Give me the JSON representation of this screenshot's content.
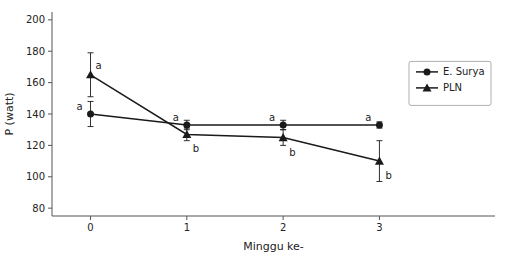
{
  "chart_data": {
    "type": "line",
    "x": [
      0,
      1,
      2,
      3
    ],
    "series": [
      {
        "name": "E. Surya",
        "color": "#1a1a1a",
        "marker": "circle",
        "values": [
          140,
          133,
          133,
          133
        ],
        "yerr": [
          8,
          3,
          3,
          2
        ]
      },
      {
        "name": "PLN",
        "color": "#1a1a1a",
        "marker": "triangle",
        "values": [
          165,
          127,
          125,
          110
        ],
        "yerr": [
          14,
          4,
          5,
          13
        ]
      }
    ],
    "xlabel": "Minggu ke-",
    "ylabel": "P (watt)",
    "xlim": [
      -0.4,
      4.2
    ],
    "xticks": [
      0,
      1,
      2,
      3
    ],
    "ylim": [
      75,
      205
    ],
    "yticks": [
      80,
      100,
      120,
      140,
      160,
      180,
      200
    ],
    "grid": false,
    "legend": "right",
    "annotations": [
      {
        "text": "a",
        "x": 0,
        "y": 140
      },
      {
        "text": "a",
        "x": 1,
        "y": 133
      },
      {
        "text": "a",
        "x": 2,
        "y": 133
      },
      {
        "text": "a",
        "x": 3,
        "y": 133
      },
      {
        "text": "a",
        "x": 0,
        "y": 165
      },
      {
        "text": "b",
        "x": 1,
        "y": 127
      },
      {
        "text": "b",
        "x": 2,
        "y": 125
      },
      {
        "text": "b",
        "x": 3,
        "y": 110
      }
    ]
  }
}
